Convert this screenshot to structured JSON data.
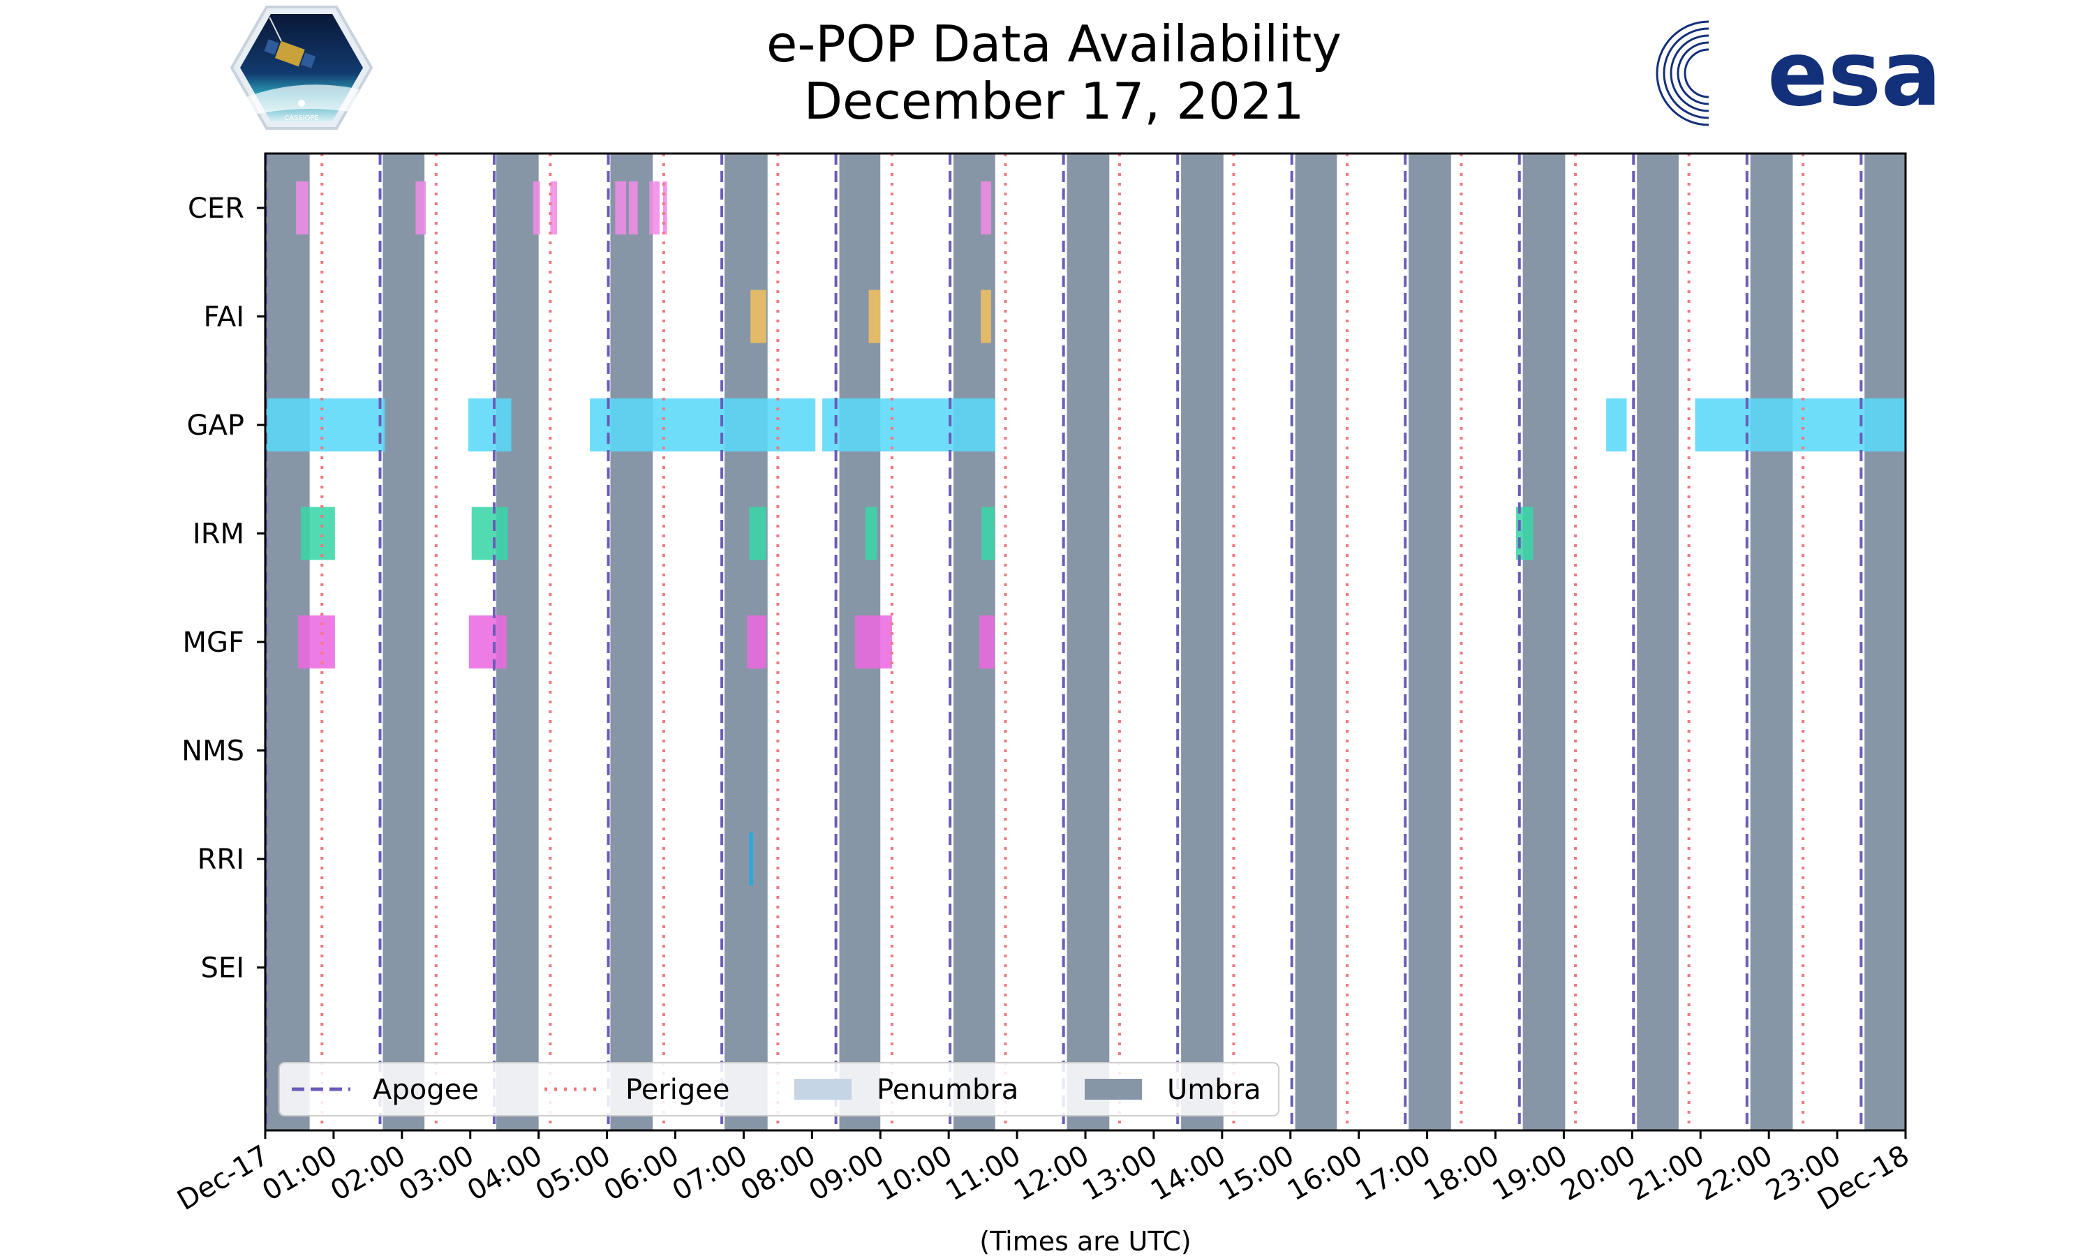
{
  "chart_data": {
    "type": "timeline",
    "title": "e-POP Data Availability",
    "subtitle": "December 17, 2021",
    "xlabel": "(Times are UTC)",
    "xlim_hours": [
      0,
      24
    ],
    "x_tick_labels": [
      "Dec-17",
      "01:00",
      "02:00",
      "03:00",
      "04:00",
      "05:00",
      "06:00",
      "07:00",
      "08:00",
      "09:00",
      "10:00",
      "11:00",
      "12:00",
      "13:00",
      "14:00",
      "15:00",
      "16:00",
      "17:00",
      "18:00",
      "19:00",
      "20:00",
      "21:00",
      "22:00",
      "23:00",
      "Dec-18"
    ],
    "instruments": [
      "CER",
      "FAI",
      "GAP",
      "IRM",
      "MGF",
      "NMS",
      "RRI",
      "SEI"
    ],
    "umbra_hours": [
      [
        0.0,
        0.65
      ],
      [
        1.72,
        2.33
      ],
      [
        3.38,
        4.0
      ],
      [
        5.05,
        5.67
      ],
      [
        6.72,
        7.35
      ],
      [
        8.4,
        9.0
      ],
      [
        10.07,
        10.68
      ],
      [
        11.73,
        12.35
      ],
      [
        13.4,
        14.02
      ],
      [
        15.07,
        15.68
      ],
      [
        16.73,
        17.35
      ],
      [
        18.4,
        19.02
      ],
      [
        20.07,
        20.68
      ],
      [
        21.73,
        22.35
      ],
      [
        23.4,
        24.0
      ]
    ],
    "apogee_hours": [
      0.0,
      1.68,
      3.35,
      5.02,
      6.68,
      8.35,
      10.02,
      11.68,
      13.35,
      15.02,
      16.68,
      18.35,
      20.02,
      21.68,
      23.35
    ],
    "perigee_hours": [
      0.83,
      2.5,
      4.17,
      5.83,
      7.5,
      9.17,
      10.83,
      12.5,
      14.17,
      15.83,
      17.5,
      19.17,
      20.83,
      22.5
    ],
    "instrument_data": [
      {
        "name": "CER",
        "color": "#f08ce6",
        "intervals": [
          [
            0.45,
            0.63
          ],
          [
            2.2,
            2.35
          ],
          [
            3.92,
            4.02
          ],
          [
            4.17,
            4.27
          ],
          [
            5.12,
            5.28
          ],
          [
            5.32,
            5.45
          ],
          [
            5.62,
            5.77
          ],
          [
            5.82,
            5.88
          ],
          [
            10.47,
            10.62
          ]
        ]
      },
      {
        "name": "FAI",
        "color": "#f0c060",
        "intervals": [
          [
            7.1,
            7.33
          ],
          [
            8.83,
            9.0
          ],
          [
            10.47,
            10.62
          ]
        ]
      },
      {
        "name": "GAP",
        "color": "#5ad8f8",
        "intervals": [
          [
            0.0,
            1.75
          ],
          [
            2.97,
            3.6
          ],
          [
            4.75,
            8.05
          ],
          [
            8.15,
            10.68
          ],
          [
            19.62,
            19.92
          ],
          [
            20.92,
            24.0
          ]
        ]
      },
      {
        "name": "IRM",
        "color": "#3ad6a8",
        "intervals": [
          [
            0.52,
            1.02
          ],
          [
            3.02,
            3.55
          ],
          [
            7.08,
            7.33
          ],
          [
            8.78,
            8.95
          ],
          [
            10.48,
            10.67
          ],
          [
            18.3,
            18.55
          ]
        ]
      },
      {
        "name": "MGF",
        "color": "#ea6ae0",
        "intervals": [
          [
            0.48,
            1.02
          ],
          [
            2.98,
            3.53
          ],
          [
            7.05,
            7.33
          ],
          [
            8.63,
            9.17
          ],
          [
            10.45,
            10.67
          ]
        ]
      },
      {
        "name": "NMS",
        "color": "#cccccc",
        "intervals": []
      },
      {
        "name": "RRI",
        "color": "#20aee0",
        "intervals": [
          [
            7.08,
            7.14
          ]
        ]
      },
      {
        "name": "SEI",
        "color": "#cccccc",
        "intervals": []
      }
    ],
    "colors": {
      "umbra": "#8796a6",
      "penumbra": "#c6d5e6",
      "apogee": "#6a5cb8",
      "perigee": "#f07880"
    },
    "legend": {
      "placement": "bottom-left",
      "entries": [
        "Apogee",
        "Perigee",
        "Penumbra",
        "Umbra"
      ]
    }
  },
  "logos": {
    "left": "CASSIOPE",
    "right": "esa"
  }
}
